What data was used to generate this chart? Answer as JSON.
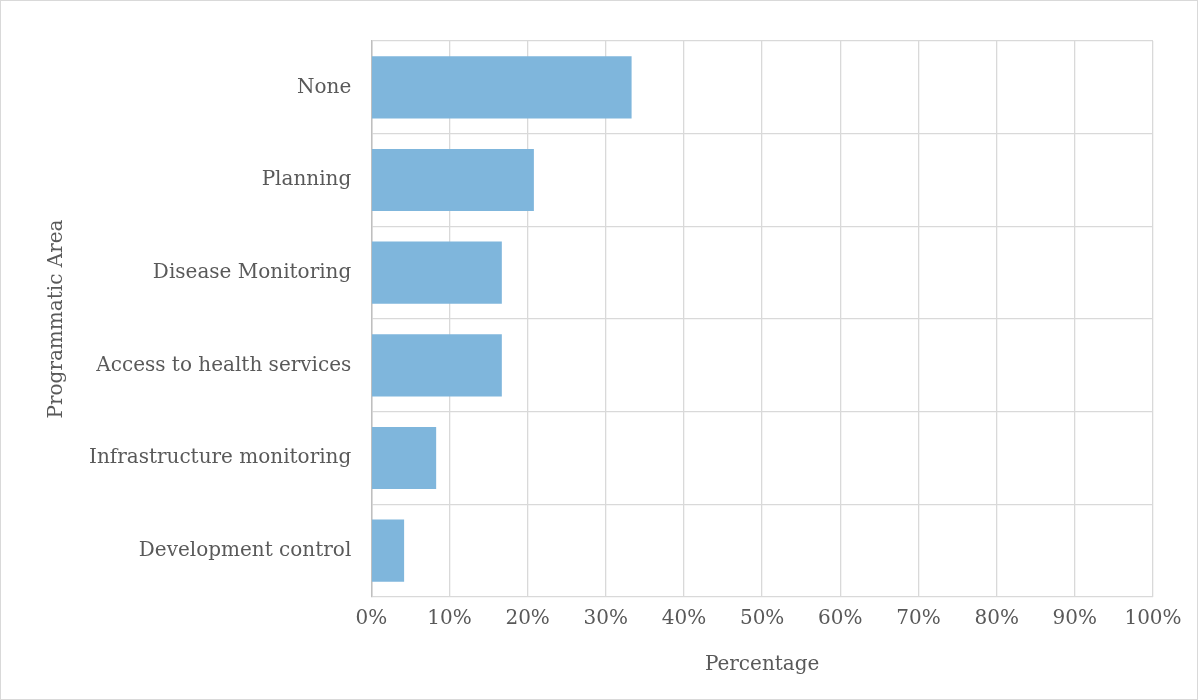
{
  "chart_data": {
    "type": "bar",
    "orientation": "horizontal",
    "xlabel": "Percentage",
    "ylabel": "Programmatic Area",
    "categories": [
      "None",
      "Planning",
      "Disease Monitoring",
      "Access to health services",
      "Infrastructure monitoring",
      "Development control"
    ],
    "values": [
      33.3,
      20.8,
      16.7,
      16.7,
      8.3,
      4.2
    ],
    "color": "#7fb6dc",
    "xlim": [
      0,
      100
    ],
    "xticks": [
      {
        "value": 0,
        "label": "0%"
      },
      {
        "value": 10,
        "label": "10%"
      },
      {
        "value": 20,
        "label": "20%"
      },
      {
        "value": 30,
        "label": "30%"
      },
      {
        "value": 40,
        "label": "40%"
      },
      {
        "value": 50,
        "label": "50%"
      },
      {
        "value": 60,
        "label": "60%"
      },
      {
        "value": 70,
        "label": "70%"
      },
      {
        "value": 80,
        "label": "80%"
      },
      {
        "value": 90,
        "label": "90%"
      },
      {
        "value": 100,
        "label": "100%"
      }
    ],
    "grid": true,
    "legend": false
  }
}
